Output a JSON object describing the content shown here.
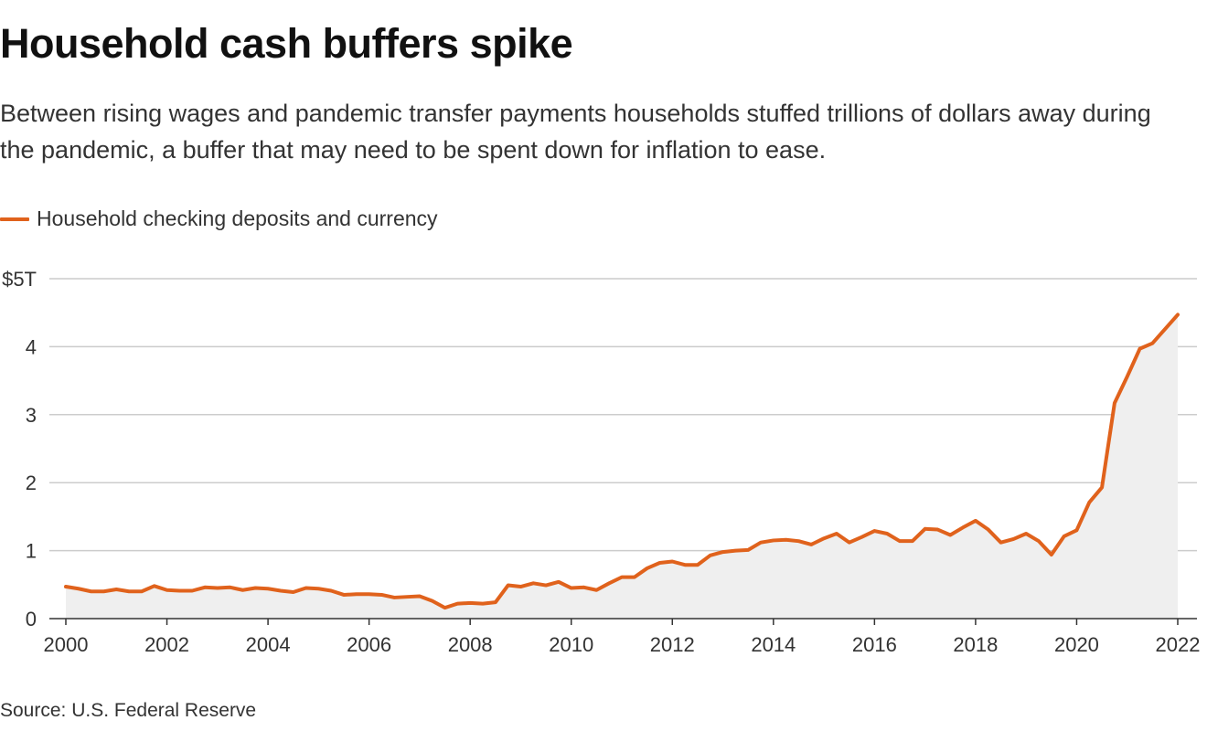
{
  "header": {
    "title": "Household cash buffers spike",
    "subtitle": "Between rising wages and pandemic transfer payments households stuffed trillions of dollars away during the pandemic, a buffer that may need to be spent down for inflation to ease."
  },
  "legend": {
    "label": "Household checking deposits and currency",
    "color": "#e0621c"
  },
  "source": "Source: U.S. Federal Reserve",
  "colors": {
    "line": "#e0621c",
    "area": "#efefef",
    "grid": "#cccccc",
    "axis": "#333333",
    "text": "#333333"
  },
  "chart_data": {
    "type": "area",
    "title": "Household cash buffers spike",
    "xlabel": "",
    "ylabel": "",
    "xlim": [
      2000,
      2022
    ],
    "ylim": [
      0,
      5
    ],
    "grid": true,
    "legend_position": "top-left",
    "y_ticks": [
      {
        "value": 0,
        "label": "0"
      },
      {
        "value": 1,
        "label": "1"
      },
      {
        "value": 2,
        "label": "2"
      },
      {
        "value": 3,
        "label": "3"
      },
      {
        "value": 4,
        "label": "4"
      },
      {
        "value": 5,
        "label": "$5T"
      }
    ],
    "x_ticks": [
      {
        "value": 2000,
        "label": "2000"
      },
      {
        "value": 2002,
        "label": "2002"
      },
      {
        "value": 2004,
        "label": "2004"
      },
      {
        "value": 2006,
        "label": "2006"
      },
      {
        "value": 2008,
        "label": "2008"
      },
      {
        "value": 2010,
        "label": "2010"
      },
      {
        "value": 2012,
        "label": "2012"
      },
      {
        "value": 2014,
        "label": "2014"
      },
      {
        "value": 2016,
        "label": "2016"
      },
      {
        "value": 2018,
        "label": "2018"
      },
      {
        "value": 2020,
        "label": "2020"
      },
      {
        "value": 2022,
        "label": "2022"
      }
    ],
    "series": [
      {
        "name": "Household checking deposits and currency",
        "x": [
          2000,
          2000.25,
          2000.5,
          2000.75,
          2001,
          2001.25,
          2001.5,
          2001.75,
          2002,
          2002.25,
          2002.5,
          2002.75,
          2003,
          2003.25,
          2003.5,
          2003.75,
          2004,
          2004.25,
          2004.5,
          2004.75,
          2005,
          2005.25,
          2005.5,
          2005.75,
          2006,
          2006.25,
          2006.5,
          2006.75,
          2007,
          2007.25,
          2007.5,
          2007.75,
          2008,
          2008.25,
          2008.5,
          2008.75,
          2009,
          2009.25,
          2009.5,
          2009.75,
          2010,
          2010.25,
          2010.5,
          2010.75,
          2011,
          2011.25,
          2011.5,
          2011.75,
          2012,
          2012.25,
          2012.5,
          2012.75,
          2013,
          2013.25,
          2013.5,
          2013.75,
          2014,
          2014.25,
          2014.5,
          2014.75,
          2015,
          2015.25,
          2015.5,
          2015.75,
          2016,
          2016.25,
          2016.5,
          2016.75,
          2017,
          2017.25,
          2017.5,
          2017.75,
          2018,
          2018.25,
          2018.5,
          2018.75,
          2019,
          2019.25,
          2019.5,
          2019.75,
          2020,
          2020.25,
          2020.5,
          2020.75,
          2021,
          2021.25,
          2021.5,
          2021.75,
          2022
        ],
        "values": [
          0.47,
          0.44,
          0.4,
          0.4,
          0.43,
          0.4,
          0.4,
          0.48,
          0.42,
          0.41,
          0.41,
          0.46,
          0.45,
          0.46,
          0.42,
          0.45,
          0.44,
          0.41,
          0.39,
          0.45,
          0.44,
          0.41,
          0.35,
          0.36,
          0.36,
          0.35,
          0.31,
          0.32,
          0.33,
          0.26,
          0.16,
          0.22,
          0.23,
          0.22,
          0.24,
          0.49,
          0.47,
          0.52,
          0.49,
          0.54,
          0.45,
          0.46,
          0.42,
          0.52,
          0.61,
          0.61,
          0.74,
          0.82,
          0.84,
          0.79,
          0.79,
          0.93,
          0.98,
          1.0,
          1.01,
          1.12,
          1.15,
          1.16,
          1.14,
          1.09,
          1.18,
          1.25,
          1.12,
          1.2,
          1.29,
          1.25,
          1.14,
          1.14,
          1.32,
          1.31,
          1.23,
          1.34,
          1.44,
          1.31,
          1.12,
          1.17,
          1.25,
          1.14,
          0.94,
          1.21,
          1.3,
          1.71,
          1.93,
          3.17,
          3.56,
          3.97,
          4.05,
          4.26,
          4.47
        ]
      }
    ]
  }
}
